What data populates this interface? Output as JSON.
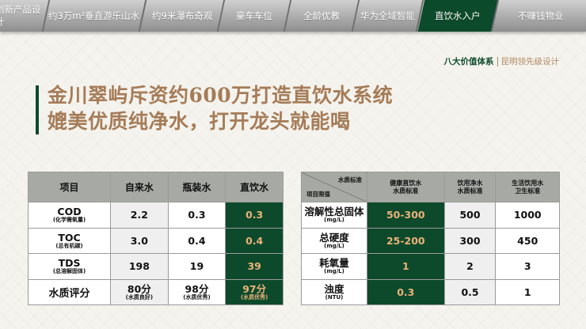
{
  "nav": {
    "tabs": [
      "创新产品设计",
      "约3万m²垂直游乐山水",
      "约9米瀑布奇观",
      "豪车车位",
      "全龄优教",
      "华为全域智能",
      "直饮水入户",
      "不赚钱物业"
    ],
    "active": "直饮水入户"
  },
  "brand": {
    "left": "八大价值体系",
    "right": "昆明领先级设计"
  },
  "headline": {
    "line1": "金川翠屿斥资约600万打造直饮水系统",
    "line2": "媲美优质纯净水，打开龙头就能喝"
  },
  "table1": {
    "headers": [
      "项目",
      "自来水",
      "瓶装水",
      "直饮水"
    ],
    "rows": [
      {
        "name": "COD",
        "sub": "(化学需氧量)",
        "values": [
          "2.2",
          "0.3",
          "0.3"
        ]
      },
      {
        "name": "TOC",
        "sub": "(总有机碳)",
        "values": [
          "3.0",
          "0.4",
          "0.4"
        ]
      },
      {
        "name": "TDS",
        "sub": "(总溶解固体)",
        "values": [
          "198",
          "19",
          "39"
        ]
      }
    ],
    "score": {
      "name": "水质评分",
      "values": [
        {
          "v": "80分",
          "s": "(水质良好)"
        },
        {
          "v": "98分",
          "s": "(水质优秀)"
        },
        {
          "v": "97分",
          "s": "(水质优秀)"
        }
      ]
    }
  },
  "table2": {
    "corner_top": "水质标准",
    "corner_bottom": "项目限值",
    "headers": [
      [
        "健康直饮水",
        "水质标准"
      ],
      [
        "饮用净水",
        "水质标准"
      ],
      [
        "生活饮用水",
        "卫生标准"
      ]
    ],
    "rows": [
      {
        "name": "溶解性总固体",
        "unit": "(mg/L)",
        "values": [
          "50-300",
          "500",
          "1000"
        ]
      },
      {
        "name": "总硬度",
        "unit": "(mg/L)",
        "values": [
          "25-200",
          "300",
          "450"
        ]
      },
      {
        "name": "耗氧量",
        "unit": "(mg/L)",
        "values": [
          "1",
          "2",
          "3"
        ]
      },
      {
        "name": "浊度",
        "unit": "(NTU)",
        "values": [
          "0.3",
          "0.5",
          "1"
        ]
      }
    ]
  },
  "colors": {
    "accent_green": "#0d4a2b",
    "highlight_text": "#e9b27a",
    "title": "#a57c58"
  }
}
